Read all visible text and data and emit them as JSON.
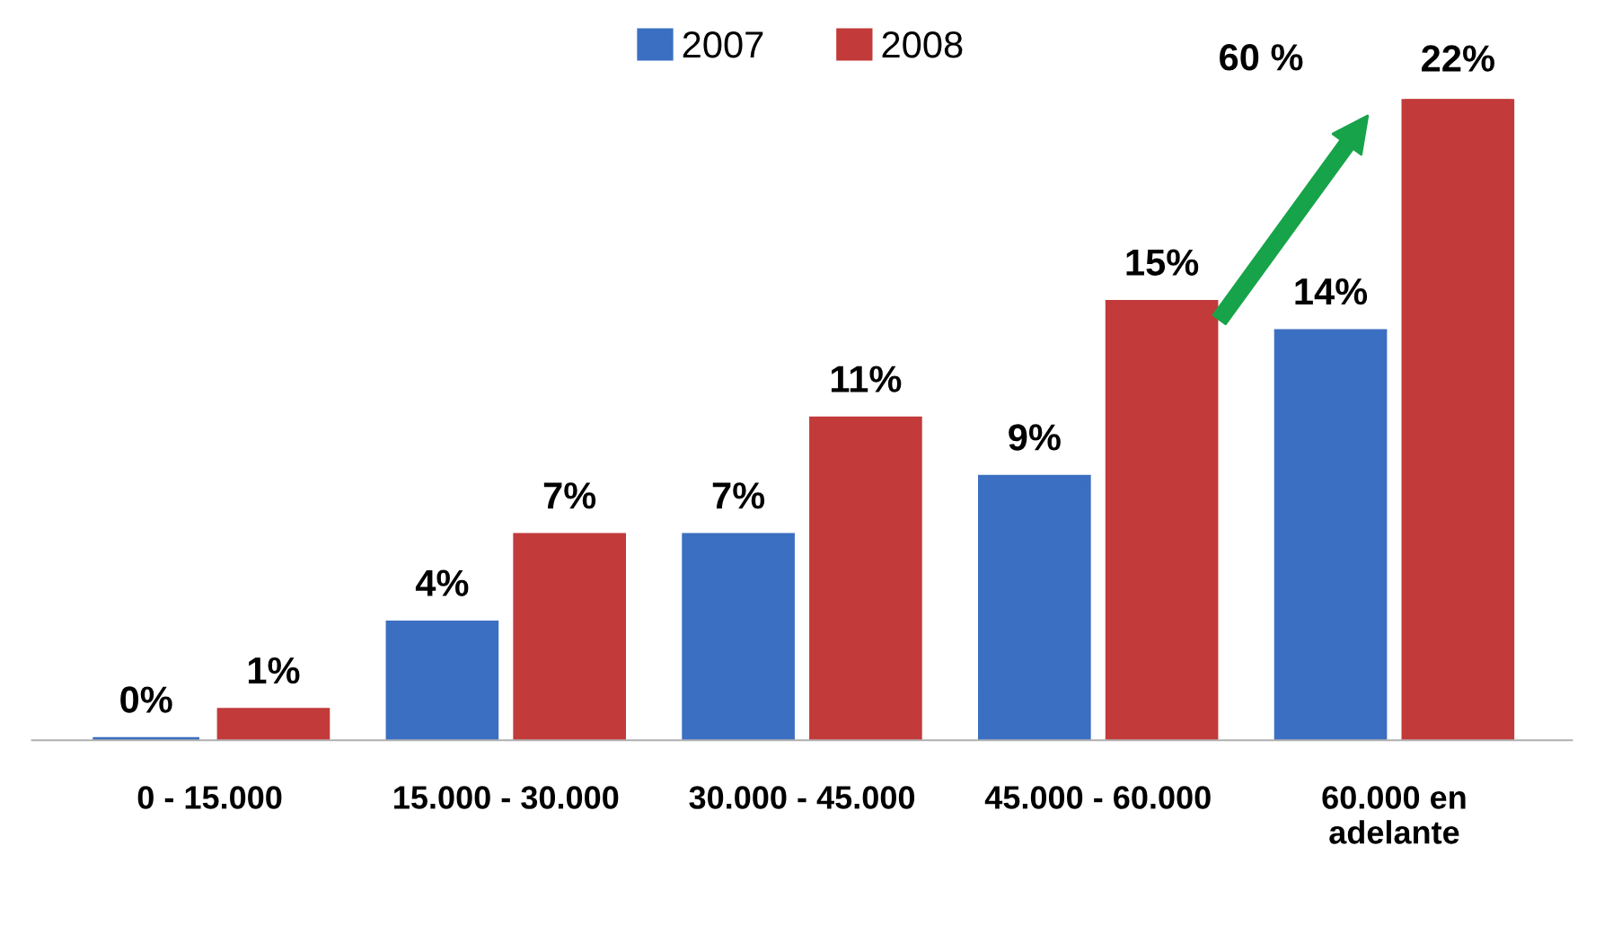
{
  "chart_data": {
    "type": "bar",
    "categories": [
      "0 - 15.000",
      "15.000 - 30.000",
      "30.000 - 45.000",
      "45.000 - 60.000",
      "60.000 en\nadelante"
    ],
    "series": [
      {
        "name": "2007",
        "color": "#3b6fc1",
        "values": [
          0,
          4,
          7,
          9,
          14
        ],
        "value_labels": [
          "0%",
          "4%",
          "7%",
          "9%",
          "14%"
        ]
      },
      {
        "name": "2008",
        "color": "#c23a3a",
        "values": [
          1,
          7,
          11,
          15,
          22
        ],
        "value_labels": [
          "1%",
          "7%",
          "11%",
          "15%",
          "22%"
        ]
      }
    ],
    "legend": "top",
    "annotations": [
      "60 %"
    ]
  }
}
